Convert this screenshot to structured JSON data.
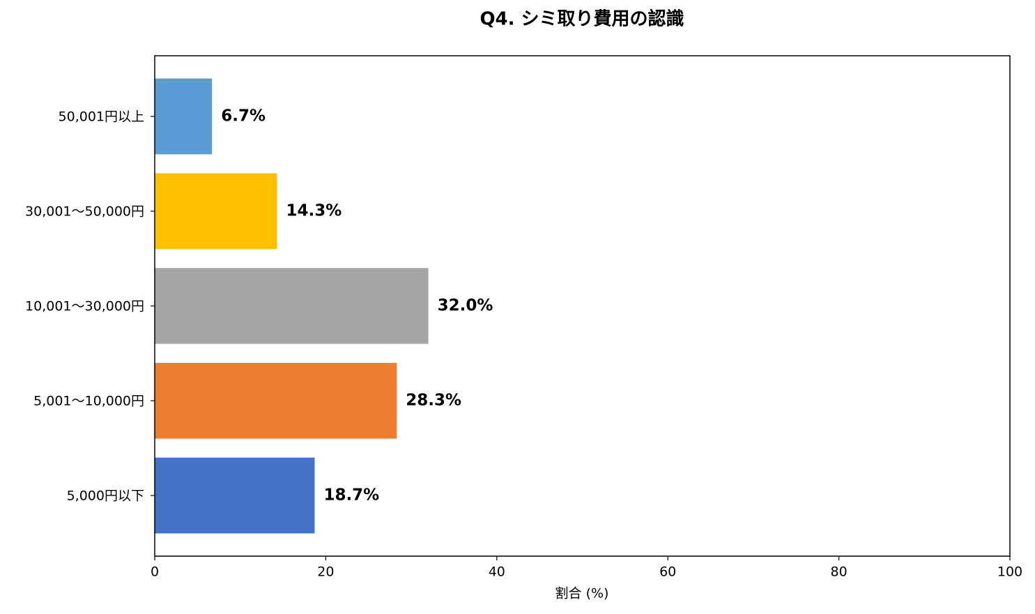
{
  "chart_data": {
    "type": "barh",
    "title": "Q4. シミ取り費用の認識",
    "categories": [
      "5,000円以下",
      "5,001〜10,000円",
      "10,001〜30,000円",
      "30,001〜50,000円",
      "50,001円以上"
    ],
    "values": [
      18.7,
      28.3,
      32.0,
      14.3,
      6.7
    ],
    "value_labels": [
      "18.7%",
      "28.3%",
      "32.0%",
      "14.3%",
      "6.7%"
    ],
    "colors": [
      "#4472c4",
      "#ed7d31",
      "#a5a5a5",
      "#ffc000",
      "#5b9bd5"
    ],
    "xlabel": "割合 (%)",
    "xlim": [
      0,
      100
    ],
    "xticks": [
      0,
      20,
      40,
      60,
      80,
      100
    ],
    "grid": false
  }
}
